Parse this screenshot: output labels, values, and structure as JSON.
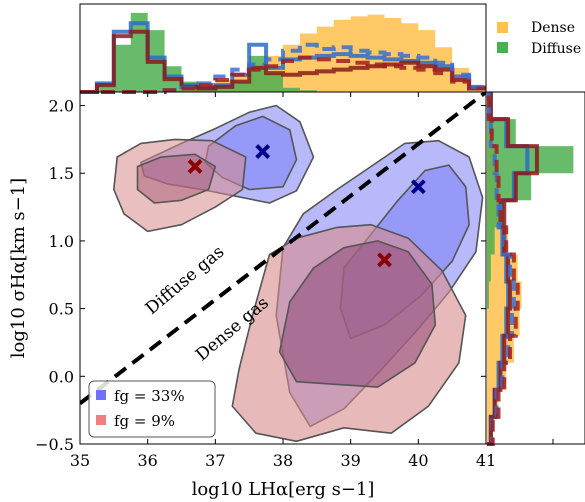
{
  "chart_data": {
    "type": "contour_with_marginal_histograms",
    "xlabel": "log10 LHα[erg s−1]",
    "ylabel": "log10 σHα[km s−1]",
    "xlim": [
      35,
      41
    ],
    "ylim": [
      -0.5,
      2.1
    ],
    "xticks": [
      "35",
      "36",
      "37",
      "38",
      "39",
      "40",
      "41"
    ],
    "yticks": [
      "−0.5",
      "0.0",
      "0.5",
      "1.0",
      "1.5",
      "2.0"
    ],
    "divider_line": {
      "style": "dashed",
      "color": "#000000",
      "from": [
        35,
        -0.2
      ],
      "to": [
        41,
        2.1
      ]
    },
    "annotations": [
      {
        "text": "Diffuse gas",
        "x": 36.6,
        "y": 0.68,
        "angle_deg": -40
      },
      {
        "text": "Dense gas",
        "x": 37.3,
        "y": 0.32,
        "angle_deg": -40
      }
    ],
    "legend_main": {
      "placement": "lower-left",
      "entries": [
        {
          "label": "fg = 33%",
          "color": "#7070ff"
        },
        {
          "label": "fg = 9%",
          "color": "#f08080"
        }
      ]
    },
    "legend_top": {
      "placement": "upper-right-outside",
      "entries": [
        {
          "label": "Dense",
          "color": "#ffc04d"
        },
        {
          "label": "Diffuse",
          "color": "#4caf50"
        }
      ]
    },
    "contour_series": [
      {
        "name": "fg = 33%",
        "color": "#6f73f5",
        "levels": 2
      },
      {
        "name": "fg = 9%",
        "color": "#d98a8a",
        "levels": 2
      }
    ],
    "markers": [
      {
        "series": "fg = 33%",
        "region": "diffuse",
        "x": 37.7,
        "y": 1.66,
        "color": "#00008b",
        "symbol": "x"
      },
      {
        "series": "fg = 33%",
        "region": "dense",
        "x": 40.0,
        "y": 1.4,
        "color": "#00008b",
        "symbol": "x"
      },
      {
        "series": "fg = 9%",
        "region": "diffuse",
        "x": 36.7,
        "y": 1.55,
        "color": "#8b0000",
        "symbol": "x"
      },
      {
        "series": "fg = 9%",
        "region": "dense",
        "x": 39.5,
        "y": 0.86,
        "color": "#8b0000",
        "symbol": "x"
      }
    ],
    "top_histogram": {
      "bins_x": [
        35.0,
        35.25,
        35.5,
        35.75,
        36.0,
        36.25,
        36.5,
        36.75,
        37.0,
        37.25,
        37.5,
        37.75,
        38.0,
        38.25,
        38.5,
        38.75,
        39.0,
        39.25,
        39.5,
        39.75,
        40.0,
        40.25,
        40.5,
        40.75,
        41.0
      ],
      "series": [
        {
          "name": "Dense",
          "color": "#ffc04d",
          "values": [
            0,
            0,
            0,
            0,
            0,
            0.02,
            0.05,
            0.08,
            0.14,
            0.22,
            0.3,
            0.42,
            0.55,
            0.68,
            0.76,
            0.84,
            0.88,
            0.9,
            0.86,
            0.8,
            0.72,
            0.52,
            0.28,
            0.08
          ]
        },
        {
          "name": "Diffuse",
          "color": "#4caf50",
          "values": [
            0,
            0.1,
            0.55,
            0.92,
            0.72,
            0.3,
            0.12,
            0.06,
            0.06,
            0.12,
            0.42,
            0.22,
            0.05,
            0.02,
            0,
            0,
            0,
            0,
            0,
            0,
            0,
            0,
            0,
            0
          ]
        }
      ]
    },
    "right_histogram": {
      "bins_y": [
        -0.5,
        -0.3,
        -0.1,
        0.1,
        0.3,
        0.5,
        0.7,
        0.9,
        1.1,
        1.3,
        1.5,
        1.7,
        1.9,
        2.1
      ],
      "series": [
        {
          "name": "Dense",
          "color": "#ffc04d",
          "values": [
            0.06,
            0.12,
            0.2,
            0.28,
            0.34,
            0.36,
            0.32,
            0.22,
            0.16,
            0.14,
            0.1,
            0.06,
            0.02
          ]
        },
        {
          "name": "Diffuse",
          "color": "#4caf50",
          "values": [
            0,
            0,
            0,
            0,
            0,
            0.02,
            0.04,
            0.08,
            0.18,
            0.46,
            0.9,
            0.3,
            0.04
          ]
        }
      ]
    }
  }
}
